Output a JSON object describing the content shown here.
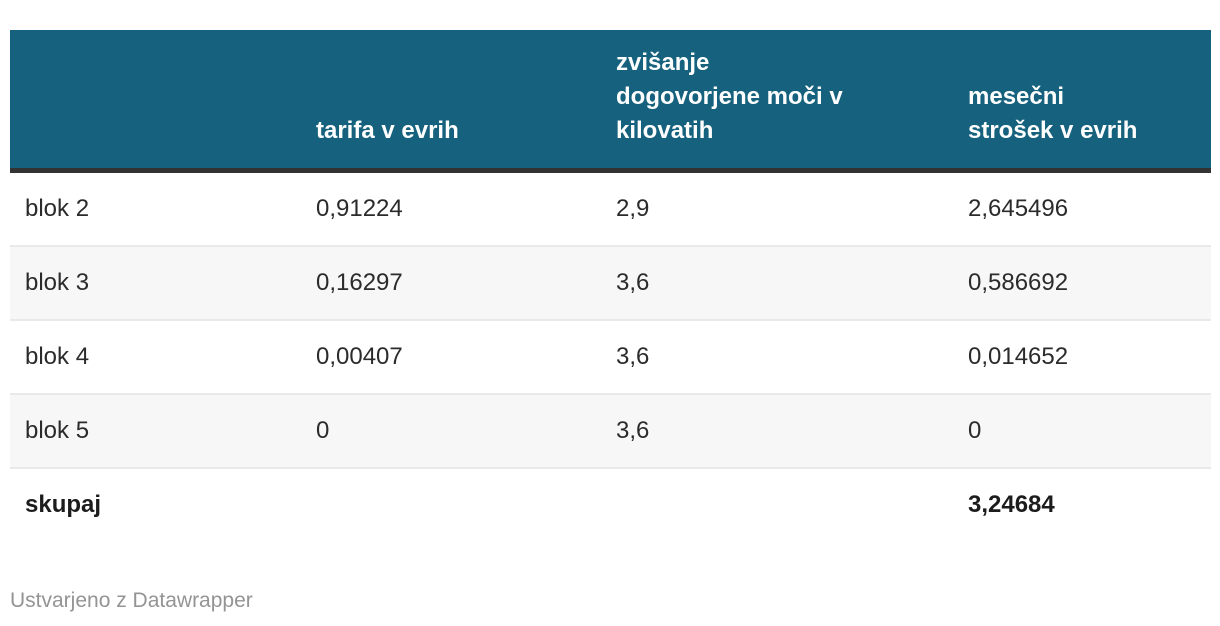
{
  "table": {
    "columns": [
      {
        "label": ""
      },
      {
        "label": "tarifa v evrih"
      },
      {
        "label": "zvišanje\ndogovorjene moči v\nkilovatih"
      },
      {
        "label": "mesečni\nstrošek v evrih"
      }
    ],
    "rows": [
      {
        "cells": [
          "blok 2",
          "0,91224",
          "2,9",
          "2,645496"
        ]
      },
      {
        "cells": [
          "blok 3",
          "0,16297",
          "3,6",
          "0,586692"
        ]
      },
      {
        "cells": [
          "blok 4",
          "0,00407",
          "3,6",
          "0,014652"
        ]
      },
      {
        "cells": [
          "blok 5",
          "0",
          "3,6",
          "0"
        ]
      }
    ],
    "total": {
      "label": "skupaj",
      "tarifa": "",
      "zvisanje": "",
      "strosek": "3,24684"
    }
  },
  "footer": {
    "credit": "Ustvarjeno z Datawrapper"
  },
  "colors": {
    "header_bg": "#16617d",
    "header_text": "#ffffff",
    "header_border": "#333333",
    "zebra_row": "#f7f7f7",
    "row_border": "#e9e9e9",
    "body_text": "#2b2b2b",
    "credit_text": "#949494"
  },
  "chart_data": {
    "type": "table",
    "title": "",
    "columns": [
      "",
      "tarifa v evrih",
      "zvišanje dogovorjene moči v kilovatih",
      "mesečni strošek v evrih"
    ],
    "rows": [
      [
        "blok 2",
        0.91224,
        2.9,
        2.645496
      ],
      [
        "blok 3",
        0.16297,
        3.6,
        0.586692
      ],
      [
        "blok 4",
        0.00407,
        3.6,
        0.014652
      ],
      [
        "blok 5",
        0,
        3.6,
        0
      ],
      [
        "skupaj",
        null,
        null,
        3.24684
      ]
    ],
    "layout_hints": {
      "zebra_striping": true,
      "total_row_bold": true,
      "decimal_separator": ","
    }
  }
}
